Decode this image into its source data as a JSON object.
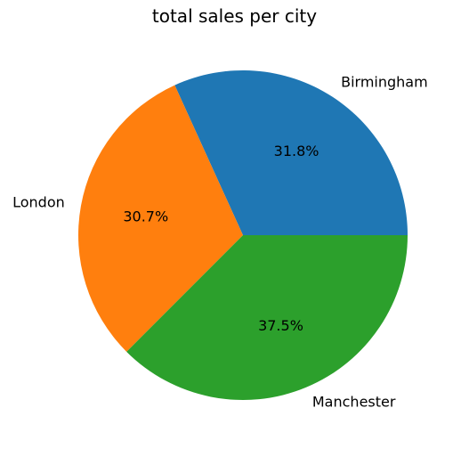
{
  "chart_data": {
    "type": "pie",
    "title": "total sales per city",
    "categories": [
      "Birmingham",
      "London",
      "Manchester"
    ],
    "values": [
      31.8,
      30.7,
      37.5
    ],
    "value_labels": [
      "31.8%",
      "30.7%",
      "37.5%"
    ],
    "colors": [
      "#1f77b4",
      "#ff7f0e",
      "#2ca02c"
    ],
    "start_angle_deg": 0,
    "direction": "counterclockwise"
  }
}
